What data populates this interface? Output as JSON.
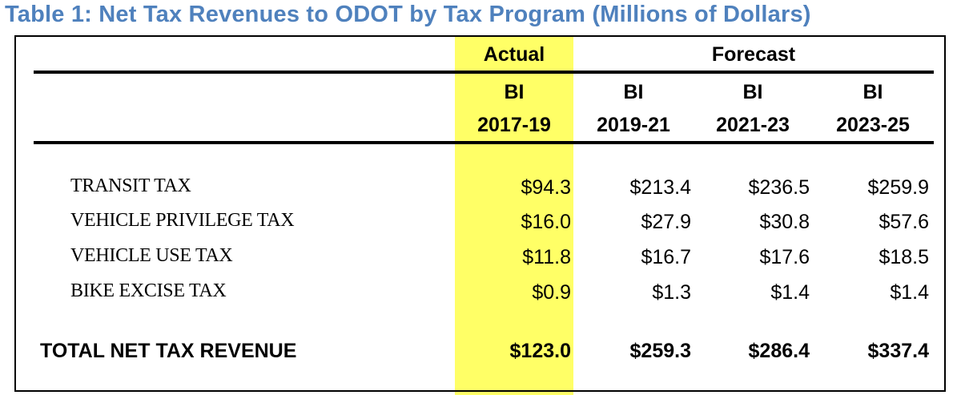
{
  "title": "Table 1: Net Tax Revenues to ODOT by Tax Program (Millions of Dollars)",
  "group_headers": {
    "actual": "Actual",
    "forecast": "Forecast"
  },
  "columns": [
    {
      "line1": "BI",
      "line2": "2017-19"
    },
    {
      "line1": "BI",
      "line2": "2019-21"
    },
    {
      "line1": "BI",
      "line2": "2021-23"
    },
    {
      "line1": "BI",
      "line2": "2023-25"
    }
  ],
  "rows": [
    {
      "label": "TRANSIT TAX",
      "values": [
        "$94.3",
        "$213.4",
        "$236.5",
        "$259.9"
      ]
    },
    {
      "label": "VEHICLE PRIVILEGE TAX",
      "values": [
        "$16.0",
        "$27.9",
        "$30.8",
        "$57.6"
      ]
    },
    {
      "label": "VEHICLE USE TAX",
      "values": [
        "$11.8",
        "$16.7",
        "$17.6",
        "$18.5"
      ]
    },
    {
      "label": "BIKE EXCISE TAX",
      "values": [
        "$0.9",
        "$1.3",
        "$1.4",
        "$1.4"
      ]
    }
  ],
  "total": {
    "label": "TOTAL NET TAX REVENUE",
    "values": [
      "$123.0",
      "$259.3",
      "$286.4",
      "$337.4"
    ]
  },
  "colors": {
    "title": "#4F81BD",
    "highlight": "#FFFF66"
  }
}
